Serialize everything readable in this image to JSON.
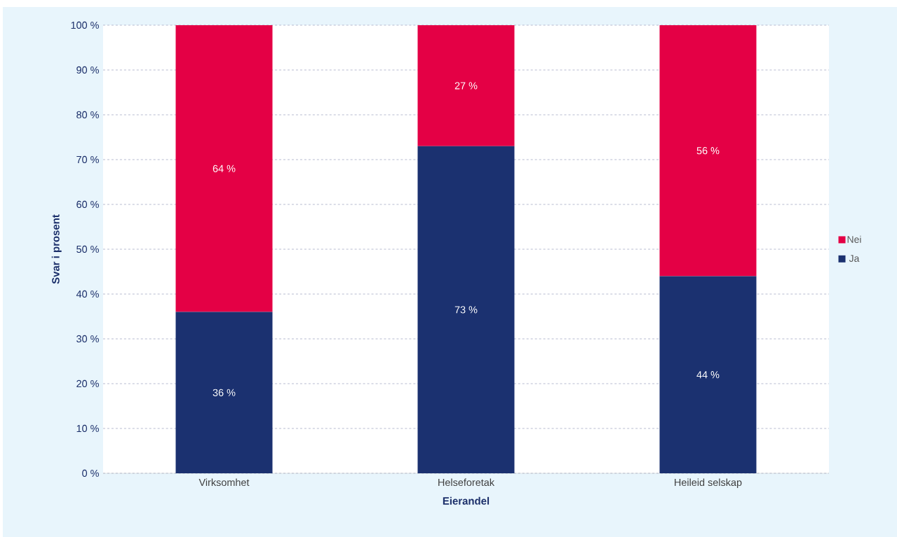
{
  "chart_data": {
    "type": "bar",
    "stacked": true,
    "xlabel": "Eierandel",
    "ylabel": "Svar i prosent",
    "categories": [
      "Virksomhet",
      "Helseforetak",
      "Heileid selskap"
    ],
    "series": [
      {
        "name": "Ja",
        "color": "#1b3170",
        "values": [
          36,
          73,
          44
        ],
        "value_labels": [
          "36 %",
          "73 %",
          "44 %"
        ]
      },
      {
        "name": "Nei",
        "color": "#e40045",
        "values": [
          64,
          27,
          56
        ],
        "value_labels": [
          "64 %",
          "27 %",
          "56 %"
        ]
      }
    ],
    "ylim": [
      0,
      100
    ],
    "yticks": [
      {
        "value": 0,
        "label": "0 %"
      },
      {
        "value": 10,
        "label": "10 %"
      },
      {
        "value": 20,
        "label": "20 %"
      },
      {
        "value": 30,
        "label": "30 %"
      },
      {
        "value": 40,
        "label": "40 %"
      },
      {
        "value": 50,
        "label": "50 %"
      },
      {
        "value": 60,
        "label": "60 %"
      },
      {
        "value": 70,
        "label": "70 %"
      },
      {
        "value": 80,
        "label": "80 %"
      },
      {
        "value": 90,
        "label": "90 %"
      },
      {
        "value": 100,
        "label": "100 %"
      }
    ],
    "grid": "y",
    "legend": "right"
  }
}
